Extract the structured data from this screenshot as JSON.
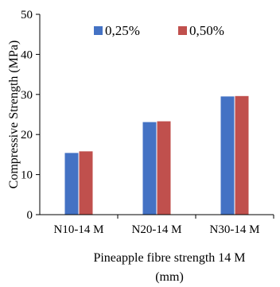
{
  "chart_data": {
    "type": "bar",
    "title": "",
    "xlabel_lines": [
      "Pineapple fibre strength 14 M",
      "(mm)"
    ],
    "ylabel": "Compressive Strength  (MPa)",
    "categories": [
      "N10-14 M",
      "N20-14 M",
      "N30-14 M"
    ],
    "series": [
      {
        "name": "0,25%",
        "color": "#4472C4",
        "values": [
          15.4,
          23.1,
          29.5
        ]
      },
      {
        "name": "0,50%",
        "color": "#C0504D",
        "values": [
          15.8,
          23.3,
          29.6
        ]
      }
    ],
    "ylim": [
      0,
      50
    ],
    "yticks": [
      "0",
      "10",
      "20",
      "30",
      "40",
      "50"
    ],
    "grid": false,
    "legend_position": "top-center"
  }
}
